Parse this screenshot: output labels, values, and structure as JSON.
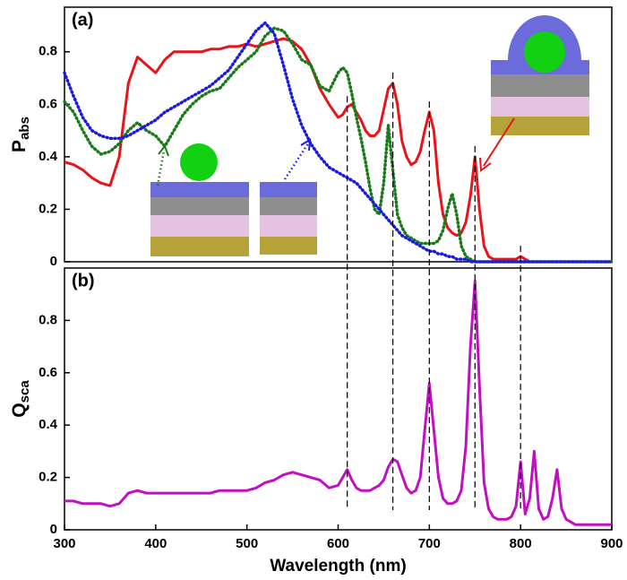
{
  "chart_data": [
    {
      "type": "line",
      "panel_label": "(a)",
      "ylabel": "P",
      "ylabel_sub": "abs",
      "xlim": [
        300,
        900
      ],
      "ylim": [
        0,
        0.97
      ],
      "yticks": [
        0,
        0.2,
        0.4,
        0.6,
        0.8
      ],
      "x": [
        300,
        310,
        320,
        330,
        340,
        350,
        360,
        370,
        380,
        390,
        400,
        410,
        420,
        430,
        440,
        450,
        460,
        470,
        480,
        490,
        500,
        510,
        520,
        530,
        540,
        550,
        560,
        570,
        580,
        590,
        600,
        605,
        610,
        615,
        620,
        625,
        630,
        635,
        640,
        645,
        650,
        655,
        660,
        665,
        670,
        675,
        680,
        685,
        690,
        695,
        700,
        705,
        710,
        715,
        720,
        725,
        730,
        735,
        740,
        745,
        750,
        755,
        760,
        765,
        770,
        775,
        780,
        785,
        790,
        795,
        800,
        805,
        810,
        815,
        820,
        825,
        830,
        835,
        840,
        845,
        850,
        860,
        870,
        880,
        890,
        900
      ],
      "series": [
        {
          "color": "#e8141b",
          "linestyle": "solid",
          "values": [
            0.38,
            0.37,
            0.35,
            0.32,
            0.3,
            0.29,
            0.4,
            0.68,
            0.78,
            0.75,
            0.72,
            0.77,
            0.8,
            0.8,
            0.8,
            0.8,
            0.81,
            0.81,
            0.82,
            0.82,
            0.83,
            0.82,
            0.83,
            0.84,
            0.85,
            0.84,
            0.81,
            0.75,
            0.66,
            0.6,
            0.55,
            0.56,
            0.59,
            0.6,
            0.57,
            0.54,
            0.5,
            0.48,
            0.48,
            0.5,
            0.58,
            0.66,
            0.68,
            0.6,
            0.46,
            0.4,
            0.37,
            0.38,
            0.42,
            0.5,
            0.57,
            0.5,
            0.3,
            0.18,
            0.13,
            0.11,
            0.1,
            0.11,
            0.15,
            0.25,
            0.4,
            0.2,
            0.06,
            0.02,
            0.01,
            0.01,
            0.01,
            0.01,
            0.01,
            0.01,
            0.02,
            0.01,
            0,
            0,
            0,
            0,
            0,
            0,
            0,
            0,
            0,
            0,
            0,
            0,
            0,
            0
          ]
        },
        {
          "color": "#1a7a1a",
          "linestyle": "dotted",
          "values": [
            0.61,
            0.57,
            0.5,
            0.44,
            0.41,
            0.42,
            0.45,
            0.5,
            0.53,
            0.5,
            0.48,
            0.44,
            0.5,
            0.56,
            0.6,
            0.63,
            0.65,
            0.66,
            0.7,
            0.74,
            0.77,
            0.8,
            0.86,
            0.89,
            0.88,
            0.83,
            0.77,
            0.75,
            0.67,
            0.65,
            0.72,
            0.74,
            0.72,
            0.64,
            0.55,
            0.47,
            0.38,
            0.28,
            0.2,
            0.18,
            0.3,
            0.52,
            0.35,
            0.18,
            0.13,
            0.1,
            0.09,
            0.08,
            0.07,
            0.07,
            0.07,
            0.07,
            0.08,
            0.12,
            0.2,
            0.26,
            0.18,
            0.06,
            0.02,
            0.01,
            0,
            0,
            0,
            0,
            0,
            0,
            0,
            0,
            0,
            0,
            0,
            0,
            0,
            0,
            0,
            0,
            0,
            0,
            0,
            0,
            0,
            0,
            0,
            0,
            0,
            0
          ]
        },
        {
          "color": "#1a1ae0",
          "linestyle": "dotted",
          "values": [
            0.72,
            0.63,
            0.55,
            0.5,
            0.48,
            0.47,
            0.47,
            0.48,
            0.5,
            0.52,
            0.54,
            0.57,
            0.59,
            0.61,
            0.63,
            0.65,
            0.67,
            0.7,
            0.73,
            0.78,
            0.83,
            0.88,
            0.91,
            0.87,
            0.75,
            0.62,
            0.52,
            0.45,
            0.4,
            0.36,
            0.34,
            0.33,
            0.32,
            0.31,
            0.3,
            0.28,
            0.26,
            0.24,
            0.22,
            0.2,
            0.18,
            0.16,
            0.14,
            0.12,
            0.1,
            0.09,
            0.08,
            0.07,
            0.06,
            0.05,
            0.04,
            0.04,
            0.03,
            0.03,
            0.02,
            0.02,
            0.01,
            0.01,
            0.01,
            0,
            0,
            0,
            0,
            0,
            0,
            0,
            0,
            0,
            0,
            0,
            0,
            0,
            0,
            0,
            0,
            0,
            0,
            0,
            0,
            0,
            0,
            0,
            0,
            0,
            0,
            0
          ]
        }
      ]
    },
    {
      "type": "line",
      "panel_label": "(b)",
      "ylabel": "Q",
      "ylabel_sub": "sca",
      "xlabel": "Wavelength (nm)",
      "xlim": [
        300,
        900
      ],
      "xticks": [
        300,
        400,
        500,
        600,
        700,
        800,
        900
      ],
      "ylim": [
        0,
        1
      ],
      "yticks": [
        0,
        0.2,
        0.4,
        0.6,
        0.8
      ],
      "vlines": [
        610,
        660,
        700,
        750,
        800
      ],
      "x": [
        300,
        310,
        320,
        330,
        340,
        350,
        360,
        370,
        380,
        390,
        400,
        410,
        420,
        430,
        440,
        450,
        460,
        470,
        480,
        490,
        500,
        510,
        520,
        530,
        540,
        550,
        560,
        570,
        580,
        590,
        600,
        605,
        610,
        615,
        620,
        625,
        630,
        635,
        640,
        645,
        650,
        655,
        660,
        665,
        670,
        675,
        680,
        685,
        690,
        695,
        700,
        705,
        710,
        715,
        720,
        725,
        730,
        735,
        740,
        745,
        750,
        755,
        760,
        765,
        770,
        775,
        780,
        785,
        790,
        795,
        800,
        805,
        810,
        815,
        820,
        825,
        830,
        835,
        840,
        845,
        850,
        860,
        870,
        880,
        890,
        900
      ],
      "series": [
        {
          "color": "#c010c0",
          "linestyle": "solid",
          "values": [
            0.11,
            0.11,
            0.1,
            0.1,
            0.1,
            0.09,
            0.1,
            0.14,
            0.15,
            0.14,
            0.14,
            0.14,
            0.14,
            0.14,
            0.14,
            0.14,
            0.14,
            0.15,
            0.15,
            0.15,
            0.15,
            0.16,
            0.18,
            0.19,
            0.21,
            0.22,
            0.21,
            0.2,
            0.19,
            0.16,
            0.17,
            0.2,
            0.23,
            0.19,
            0.16,
            0.15,
            0.15,
            0.15,
            0.16,
            0.17,
            0.19,
            0.24,
            0.27,
            0.26,
            0.21,
            0.16,
            0.14,
            0.15,
            0.2,
            0.38,
            0.56,
            0.38,
            0.2,
            0.12,
            0.1,
            0.1,
            0.11,
            0.15,
            0.32,
            0.7,
            0.95,
            0.55,
            0.18,
            0.08,
            0.05,
            0.04,
            0.04,
            0.04,
            0.05,
            0.09,
            0.26,
            0.06,
            0.12,
            0.3,
            0.08,
            0.04,
            0.05,
            0.12,
            0.23,
            0.08,
            0.04,
            0.02,
            0.02,
            0.02,
            0.02,
            0.02
          ]
        }
      ]
    }
  ]
}
